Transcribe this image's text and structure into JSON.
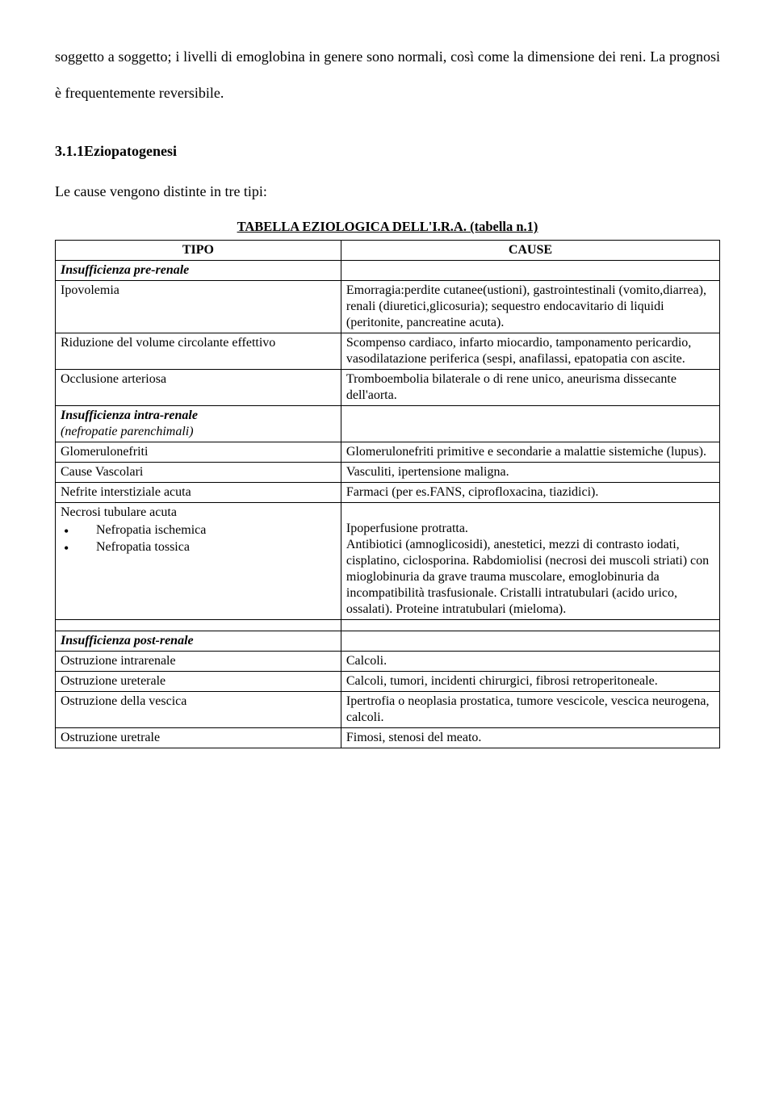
{
  "intro_para": "soggetto a soggetto; i livelli di emoglobina in genere sono normali, così come la dimensione dei reni. La prognosi è frequentemente reversibile.",
  "heading": "3.1.1Eziopatogenesi",
  "sub_para": "Le cause vengono distinte in tre tipi:",
  "table_title": "TABELLA EZIOLOGICA DELL'I.R.A. (tabella n.1)",
  "header": {
    "left": "TIPO",
    "right": "CAUSE"
  },
  "pre_section": "Insufficienza pre-renale",
  "pre_rows": [
    {
      "l": "Ipovolemia",
      "r": "Emorragia:perdite cutanee(ustioni), gastrointestinali (vomito,diarrea), renali (diuretici,glicosuria); sequestro endocavitario  di liquidi (peritonite, pancreatine acuta)."
    },
    {
      "l": "Riduzione del volume circolante effettivo",
      "r": "Scompenso cardiaco, infarto miocardio, tamponamento pericardio, vasodilatazione periferica (sespi, anafilassi, epatopatia con ascite."
    },
    {
      "l": "Occlusione arteriosa",
      "r": " Tromboembolia bilaterale o di rene unico, aneurisma dissecante dell'aorta."
    }
  ],
  "intra_section_a": "Insufficienza intra-renale",
  "intra_section_b": "(nefropatie parenchimali)",
  "intra_rows": [
    {
      "l": "Glomerulonefriti",
      "r": "Glomerulonefriti primitive e secondarie a malattie sistemiche (lupus)."
    },
    {
      "l": "Cause Vascolari",
      "r": "Vasculiti, ipertensione maligna."
    },
    {
      "l": "Nefrite interstiziale acuta",
      "r": "Farmaci (per es.FANS, ciprofloxacina, tiazidici)."
    }
  ],
  "necrosi_label": "Necrosi tubulare acuta",
  "necrosi_bullets": [
    "Nefropatia ischemica",
    "Nefropatia tossica"
  ],
  "necrosi_causes": "Ipoperfusione protratta.\nAntibiotici (amnoglicosidi), anestetici, mezzi di contrasto iodati, cisplatino, ciclosporina. Rabdomiolisi (necrosi dei muscoli striati) con mioglobinuria da grave trauma muscolare, emoglobinuria da incompatibilità trasfusionale. Cristalli intratubulari (acido urico, ossalati). Proteine intratubulari (mieloma).",
  "post_section": "Insufficienza post-renale",
  "post_rows": [
    {
      "l": "Ostruzione intrarenale",
      "r": "Calcoli."
    },
    {
      "l": "Ostruzione ureterale",
      "r": "Calcoli, tumori, incidenti chirurgici, fibrosi retroperitoneale."
    },
    {
      "l": "Ostruzione della vescica",
      "r": "Ipertrofia o neoplasia prostatica, tumore vescicole, vescica neurogena, calcoli."
    },
    {
      "l": "Ostruzione uretrale",
      "r": "Fimosi, stenosi del meato."
    }
  ]
}
